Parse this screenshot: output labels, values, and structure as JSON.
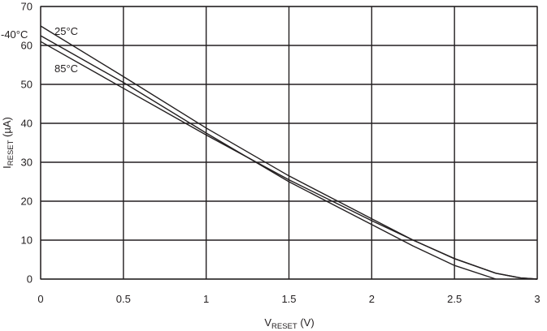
{
  "chart_data": {
    "type": "line",
    "xlabel": {
      "main": "V",
      "sub": "RESET",
      "unit": " (V)"
    },
    "ylabel": {
      "main": "I",
      "sub": "RESET",
      "unit": " (µA)"
    },
    "xlim": [
      0,
      3
    ],
    "ylim": [
      0,
      70
    ],
    "x_ticks": [
      "0",
      "0.5",
      "1",
      "1.5",
      "2",
      "2.5",
      "3"
    ],
    "y_ticks": [
      "0",
      "10",
      "20",
      "30",
      "40",
      "50",
      "60",
      "70"
    ],
    "grid": true,
    "legend": "none",
    "line_color": "#231f20",
    "series": [
      {
        "name": "-40°C",
        "x": [
          0,
          0.5,
          1,
          1.5,
          2,
          2.25,
          2.5,
          2.75
        ],
        "y": [
          62.5,
          50.5,
          37.5,
          25,
          14,
          8.5,
          3.5,
          0
        ]
      },
      {
        "name": "25°C",
        "x": [
          0,
          0.5,
          1,
          1.5,
          2,
          2.25,
          2.5,
          2.75,
          2.9,
          3
        ],
        "y": [
          65,
          52,
          38.8,
          26.5,
          15.5,
          10,
          5.2,
          1.5,
          0.3,
          0
        ]
      },
      {
        "name": "85°C",
        "x": [
          0,
          0.5,
          1,
          1.5,
          2,
          2.25,
          2.5,
          2.75,
          2.9,
          3
        ],
        "y": [
          61,
          49,
          37,
          25.5,
          15,
          10,
          5.3,
          1.5,
          0.3,
          0
        ]
      }
    ]
  }
}
